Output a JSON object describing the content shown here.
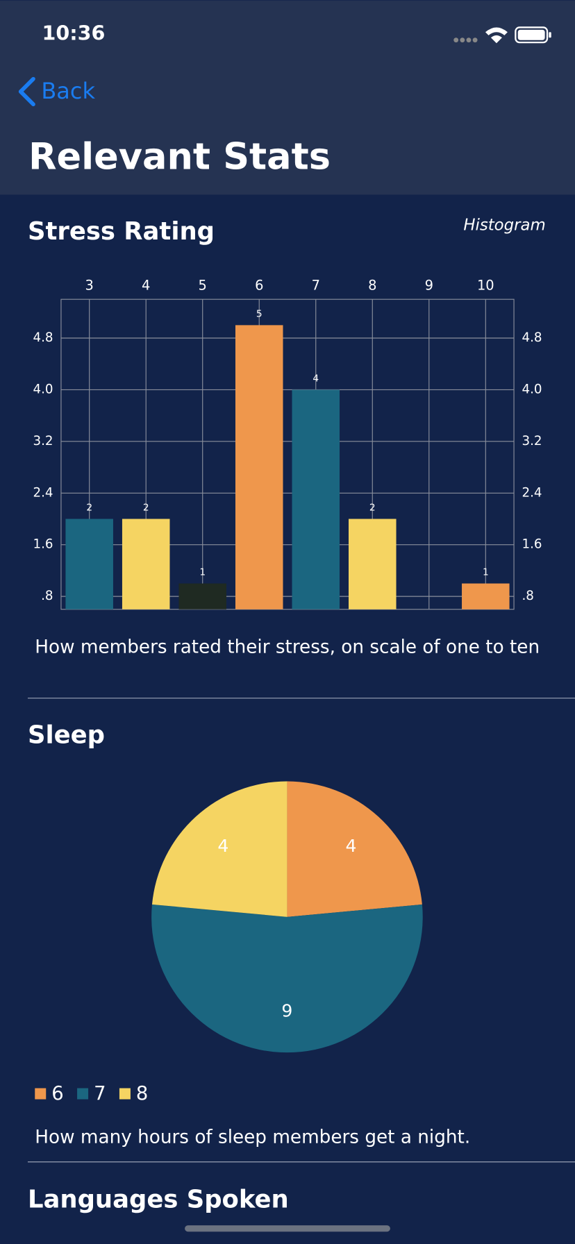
{
  "status_bar": {
    "time": "10:36"
  },
  "nav": {
    "back": "Back",
    "title": "Relevant Stats"
  },
  "chart_data": [
    {
      "type": "bar",
      "title": "Stress Rating",
      "subtitle": "Histogram",
      "categories": [
        "3",
        "4",
        "5",
        "6",
        "7",
        "8",
        "9",
        "10"
      ],
      "values": [
        2,
        2,
        1,
        5,
        4,
        2,
        null,
        1
      ],
      "colors": [
        "#1b6680",
        "#f5d462",
        "#1f2a22",
        "#ef974c",
        "#1b6680",
        "#f5d462",
        null,
        "#ef974c"
      ],
      "ylim": [
        0.6,
        5.4
      ],
      "yticks": [
        {
          "value": 0.8,
          "label": ".8"
        },
        1.6,
        2.4,
        3.2,
        {
          "value": 4.0,
          "label": "4.0"
        },
        4.8
      ],
      "grid": true,
      "caption": "How members rated their stress, on scale of one to ten"
    },
    {
      "type": "pie",
      "title": "Sleep",
      "categories": [
        "6",
        "7",
        "8"
      ],
      "values": [
        4,
        9,
        4
      ],
      "colors": [
        "#ef974c",
        "#1b6680",
        "#f5d462"
      ],
      "legend": "bottom-left",
      "caption": "How many hours of sleep members get a night."
    }
  ],
  "next_section": {
    "title": "Languages Spoken"
  }
}
